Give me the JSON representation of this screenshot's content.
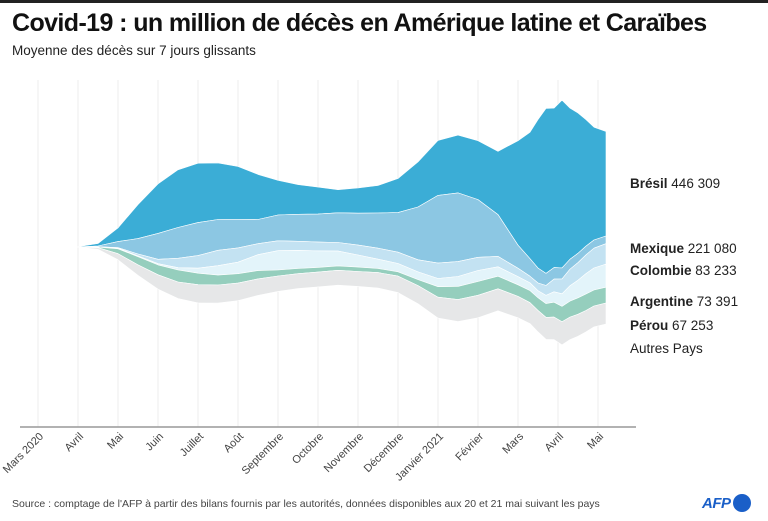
{
  "title": "Covid-19 : un million de décès en Amérique latine et Caraïbes",
  "subtitle": "Moyenne des décès sur 7 jours glissants",
  "source": "Source : comptage de l'AFP à partir des bilans fournis par les autorités, données disponibles aux 20 et 21 mai suivant les pays",
  "logo": "AFP",
  "colors": {
    "bresil": "#3badd6",
    "mexique": "#8cc7e3",
    "colombie": "#c3e2f2",
    "argentine": "#e3f4fa",
    "perou": "#95cebd",
    "autres": "#e6e7e8",
    "axis": "#999999",
    "grid": "#ececec",
    "afp": "#1a5fc8"
  },
  "labels": [
    {
      "country": "Brésil",
      "value": "446 309"
    },
    {
      "country": "Mexique",
      "value": "221 080"
    },
    {
      "country": "Colombie",
      "value": "83 233"
    },
    {
      "country": "Argentine",
      "value": "73 391"
    },
    {
      "country": "Pérou",
      "value": "67 253"
    },
    {
      "country": "Autres Pays",
      "value": ""
    }
  ],
  "chart_data": {
    "type": "area",
    "subtype": "streamgraph",
    "title": "Covid-19 : un million de décès en Amérique latine et Caraïbes",
    "subtitle": "Moyenne des décès sur 7 jours glissants",
    "xlabel": "",
    "ylabel": "",
    "grid": true,
    "x_ticks": [
      "Mars 2020",
      "Avril",
      "Mai",
      "Juin",
      "Juillet",
      "Août",
      "Septembre",
      "Octobre",
      "Novembre",
      "Décembre",
      "Janvier 2021",
      "Février",
      "Mars",
      "Avril",
      "Mai"
    ],
    "x_start_month_index": 0.95,
    "x": [
      0.95,
      1.5,
      2.0,
      2.5,
      3.0,
      3.5,
      4.0,
      4.5,
      5.0,
      5.5,
      6.0,
      6.5,
      7.0,
      7.5,
      8.0,
      8.5,
      9.0,
      9.5,
      10.0,
      10.5,
      11.0,
      11.5,
      12.0,
      12.3,
      12.5,
      12.7,
      12.9,
      13.1,
      13.3,
      13.5,
      13.7,
      13.9,
      14.2
    ],
    "series": [
      {
        "name": "Brésil",
        "total": "446 309",
        "values": [
          0,
          45,
          250,
          620,
          900,
          1050,
          1080,
          1030,
          960,
          820,
          630,
          540,
          490,
          420,
          460,
          500,
          620,
          820,
          1000,
          1050,
          1070,
          1150,
          1900,
          2300,
          2700,
          3000,
          2900,
          3050,
          2750,
          2550,
          2300,
          2050,
          1900
        ]
      },
      {
        "name": "Mexique",
        "total": "221 080",
        "values": [
          0,
          12,
          110,
          280,
          470,
          560,
          600,
          560,
          520,
          440,
          470,
          490,
          510,
          540,
          580,
          640,
          720,
          960,
          1230,
          1250,
          1050,
          760,
          420,
          320,
          270,
          220,
          210,
          200,
          180,
          170,
          160,
          150,
          140
        ]
      },
      {
        "name": "Colombie",
        "total": "83 233",
        "values": [
          0,
          4,
          10,
          35,
          80,
          170,
          230,
          280,
          260,
          200,
          180,
          165,
          160,
          155,
          180,
          200,
          205,
          220,
          280,
          270,
          240,
          190,
          150,
          120,
          140,
          180,
          230,
          270,
          300,
          320,
          340,
          360,
          370
        ]
      },
      {
        "name": "Argentine",
        "total": "73 391",
        "values": [
          0,
          4,
          10,
          14,
          22,
          40,
          90,
          170,
          210,
          290,
          350,
          330,
          300,
          270,
          220,
          170,
          150,
          140,
          150,
          180,
          200,
          170,
          150,
          140,
          130,
          150,
          190,
          230,
          280,
          320,
          370,
          400,
          420
        ]
      },
      {
        "name": "Pérou",
        "total": "67 253",
        "values": [
          0,
          10,
          90,
          150,
          180,
          220,
          210,
          180,
          170,
          150,
          110,
          95,
          85,
          80,
          80,
          75,
          80,
          110,
          190,
          240,
          250,
          230,
          210,
          220,
          230,
          250,
          270,
          280,
          290,
          300,
          300,
          290,
          290
        ]
      },
      {
        "name": "Autres Pays",
        "total": "",
        "values": [
          0,
          30,
          110,
          190,
          260,
          300,
          330,
          330,
          320,
          300,
          280,
          270,
          270,
          270,
          270,
          280,
          300,
          330,
          380,
          400,
          410,
          400,
          390,
          380,
          390,
          400,
          410,
          420,
          410,
          400,
          390,
          380,
          380
        ]
      }
    ]
  }
}
